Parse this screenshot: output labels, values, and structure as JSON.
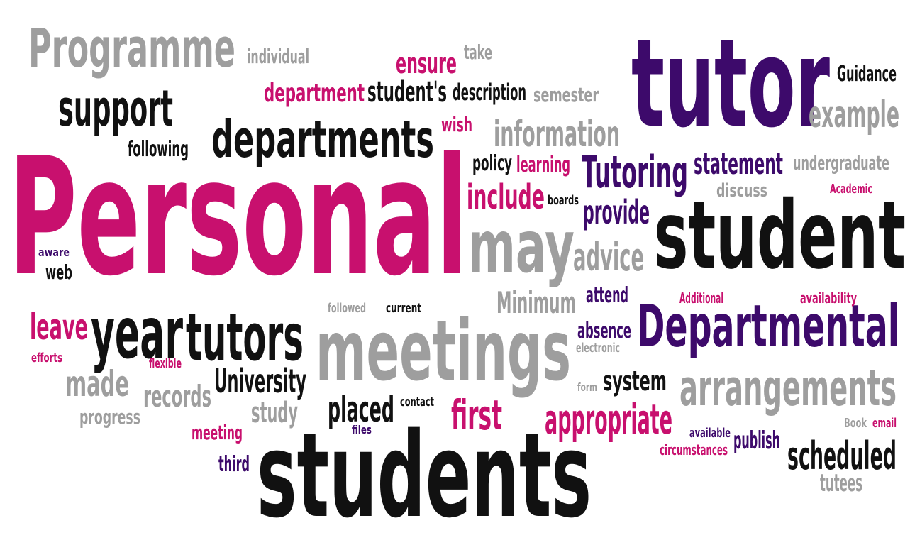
{
  "colors": {
    "magenta": "#c8106e",
    "purple": "#3d0a6b",
    "black": "#111111",
    "gray": "#9e9e9e",
    "background": "#ffffff"
  },
  "words": [
    {
      "id": "personal",
      "text": "Personal",
      "color": "magenta"
    },
    {
      "id": "students",
      "text": "students",
      "color": "black"
    },
    {
      "id": "tutor",
      "text": "tutor",
      "color": "purple"
    },
    {
      "id": "student",
      "text": "student",
      "color": "black"
    },
    {
      "id": "meetings",
      "text": "meetings",
      "color": "gray"
    },
    {
      "id": "departmental",
      "text": "Departmental",
      "color": "purple"
    },
    {
      "id": "programme",
      "text": "Programme",
      "color": "gray"
    },
    {
      "id": "departments",
      "text": "departments",
      "color": "black"
    },
    {
      "id": "may",
      "text": "may",
      "color": "gray"
    },
    {
      "id": "year",
      "text": "year",
      "color": "black"
    },
    {
      "id": "tutors",
      "text": "tutors",
      "color": "black"
    },
    {
      "id": "arrangements",
      "text": "arrangements",
      "color": "gray"
    },
    {
      "id": "support",
      "text": "support",
      "color": "black"
    },
    {
      "id": "tutoring",
      "text": "Tutoring",
      "color": "purple"
    },
    {
      "id": "information",
      "text": "information",
      "color": "gray"
    },
    {
      "id": "scheduled",
      "text": "scheduled",
      "color": "black"
    },
    {
      "id": "appropriate",
      "text": "appropriate",
      "color": "magenta"
    },
    {
      "id": "include",
      "text": "include",
      "color": "magenta"
    },
    {
      "id": "example",
      "text": "example",
      "color": "gray"
    },
    {
      "id": "advice",
      "text": "advice",
      "color": "gray"
    },
    {
      "id": "made",
      "text": "made",
      "color": "gray"
    },
    {
      "id": "placed",
      "text": "placed",
      "color": "black"
    },
    {
      "id": "university",
      "text": "University",
      "color": "black"
    },
    {
      "id": "leave",
      "text": "leave",
      "color": "magenta"
    },
    {
      "id": "first",
      "text": "first",
      "color": "magenta"
    },
    {
      "id": "records",
      "text": "records",
      "color": "gray"
    },
    {
      "id": "statement",
      "text": "statement",
      "color": "purple"
    },
    {
      "id": "provide",
      "text": "provide",
      "color": "purple"
    },
    {
      "id": "minimum",
      "text": "Minimum",
      "color": "gray"
    },
    {
      "id": "system",
      "text": "system",
      "color": "black"
    },
    {
      "id": "department",
      "text": "department",
      "color": "magenta"
    },
    {
      "id": "students_possessive",
      "text": "student's",
      "color": "black"
    },
    {
      "id": "ensure",
      "text": "ensure",
      "color": "magenta"
    },
    {
      "id": "study",
      "text": "study",
      "color": "gray"
    },
    {
      "id": "publish",
      "text": "publish",
      "color": "purple"
    },
    {
      "id": "absence",
      "text": "absence",
      "color": "purple"
    },
    {
      "id": "attend",
      "text": "attend",
      "color": "purple"
    },
    {
      "id": "tutees",
      "text": "tutees",
      "color": "gray"
    },
    {
      "id": "individual",
      "text": "individual",
      "color": "gray"
    },
    {
      "id": "take",
      "text": "take",
      "color": "gray"
    },
    {
      "id": "description",
      "text": "description",
      "color": "black"
    },
    {
      "id": "semester",
      "text": "semester",
      "color": "gray"
    },
    {
      "id": "guidance",
      "text": "Guidance",
      "color": "black"
    },
    {
      "id": "following",
      "text": "following",
      "color": "black"
    },
    {
      "id": "wish",
      "text": "wish",
      "color": "magenta"
    },
    {
      "id": "policy",
      "text": "policy",
      "color": "black"
    },
    {
      "id": "learning",
      "text": "learning",
      "color": "magenta"
    },
    {
      "id": "undergraduate",
      "text": "undergraduate",
      "color": "gray"
    },
    {
      "id": "discuss",
      "text": "discuss",
      "color": "gray"
    },
    {
      "id": "academic",
      "text": "Academic",
      "color": "magenta"
    },
    {
      "id": "boards",
      "text": "boards",
      "color": "black"
    },
    {
      "id": "aware",
      "text": "aware",
      "color": "purple"
    },
    {
      "id": "web",
      "text": "web",
      "color": "black"
    },
    {
      "id": "additional",
      "text": "Additional",
      "color": "magenta"
    },
    {
      "id": "availability",
      "text": "availability",
      "color": "magenta"
    },
    {
      "id": "followed",
      "text": "followed",
      "color": "gray"
    },
    {
      "id": "current",
      "text": "current",
      "color": "black"
    },
    {
      "id": "electronic",
      "text": "electronic",
      "color": "gray"
    },
    {
      "id": "efforts",
      "text": "efforts",
      "color": "magenta"
    },
    {
      "id": "flexible",
      "text": "flexible",
      "color": "magenta"
    },
    {
      "id": "form",
      "text": "form",
      "color": "gray"
    },
    {
      "id": "progress",
      "text": "progress",
      "color": "gray"
    },
    {
      "id": "contact",
      "text": "contact",
      "color": "black"
    },
    {
      "id": "meeting",
      "text": "meeting",
      "color": "magenta"
    },
    {
      "id": "files",
      "text": "files",
      "color": "purple"
    },
    {
      "id": "available",
      "text": "available",
      "color": "purple"
    },
    {
      "id": "book",
      "text": "Book",
      "color": "gray"
    },
    {
      "id": "email",
      "text": "email",
      "color": "magenta"
    },
    {
      "id": "circumstances",
      "text": "circumstances",
      "color": "magenta"
    },
    {
      "id": "third",
      "text": "third",
      "color": "purple"
    }
  ]
}
